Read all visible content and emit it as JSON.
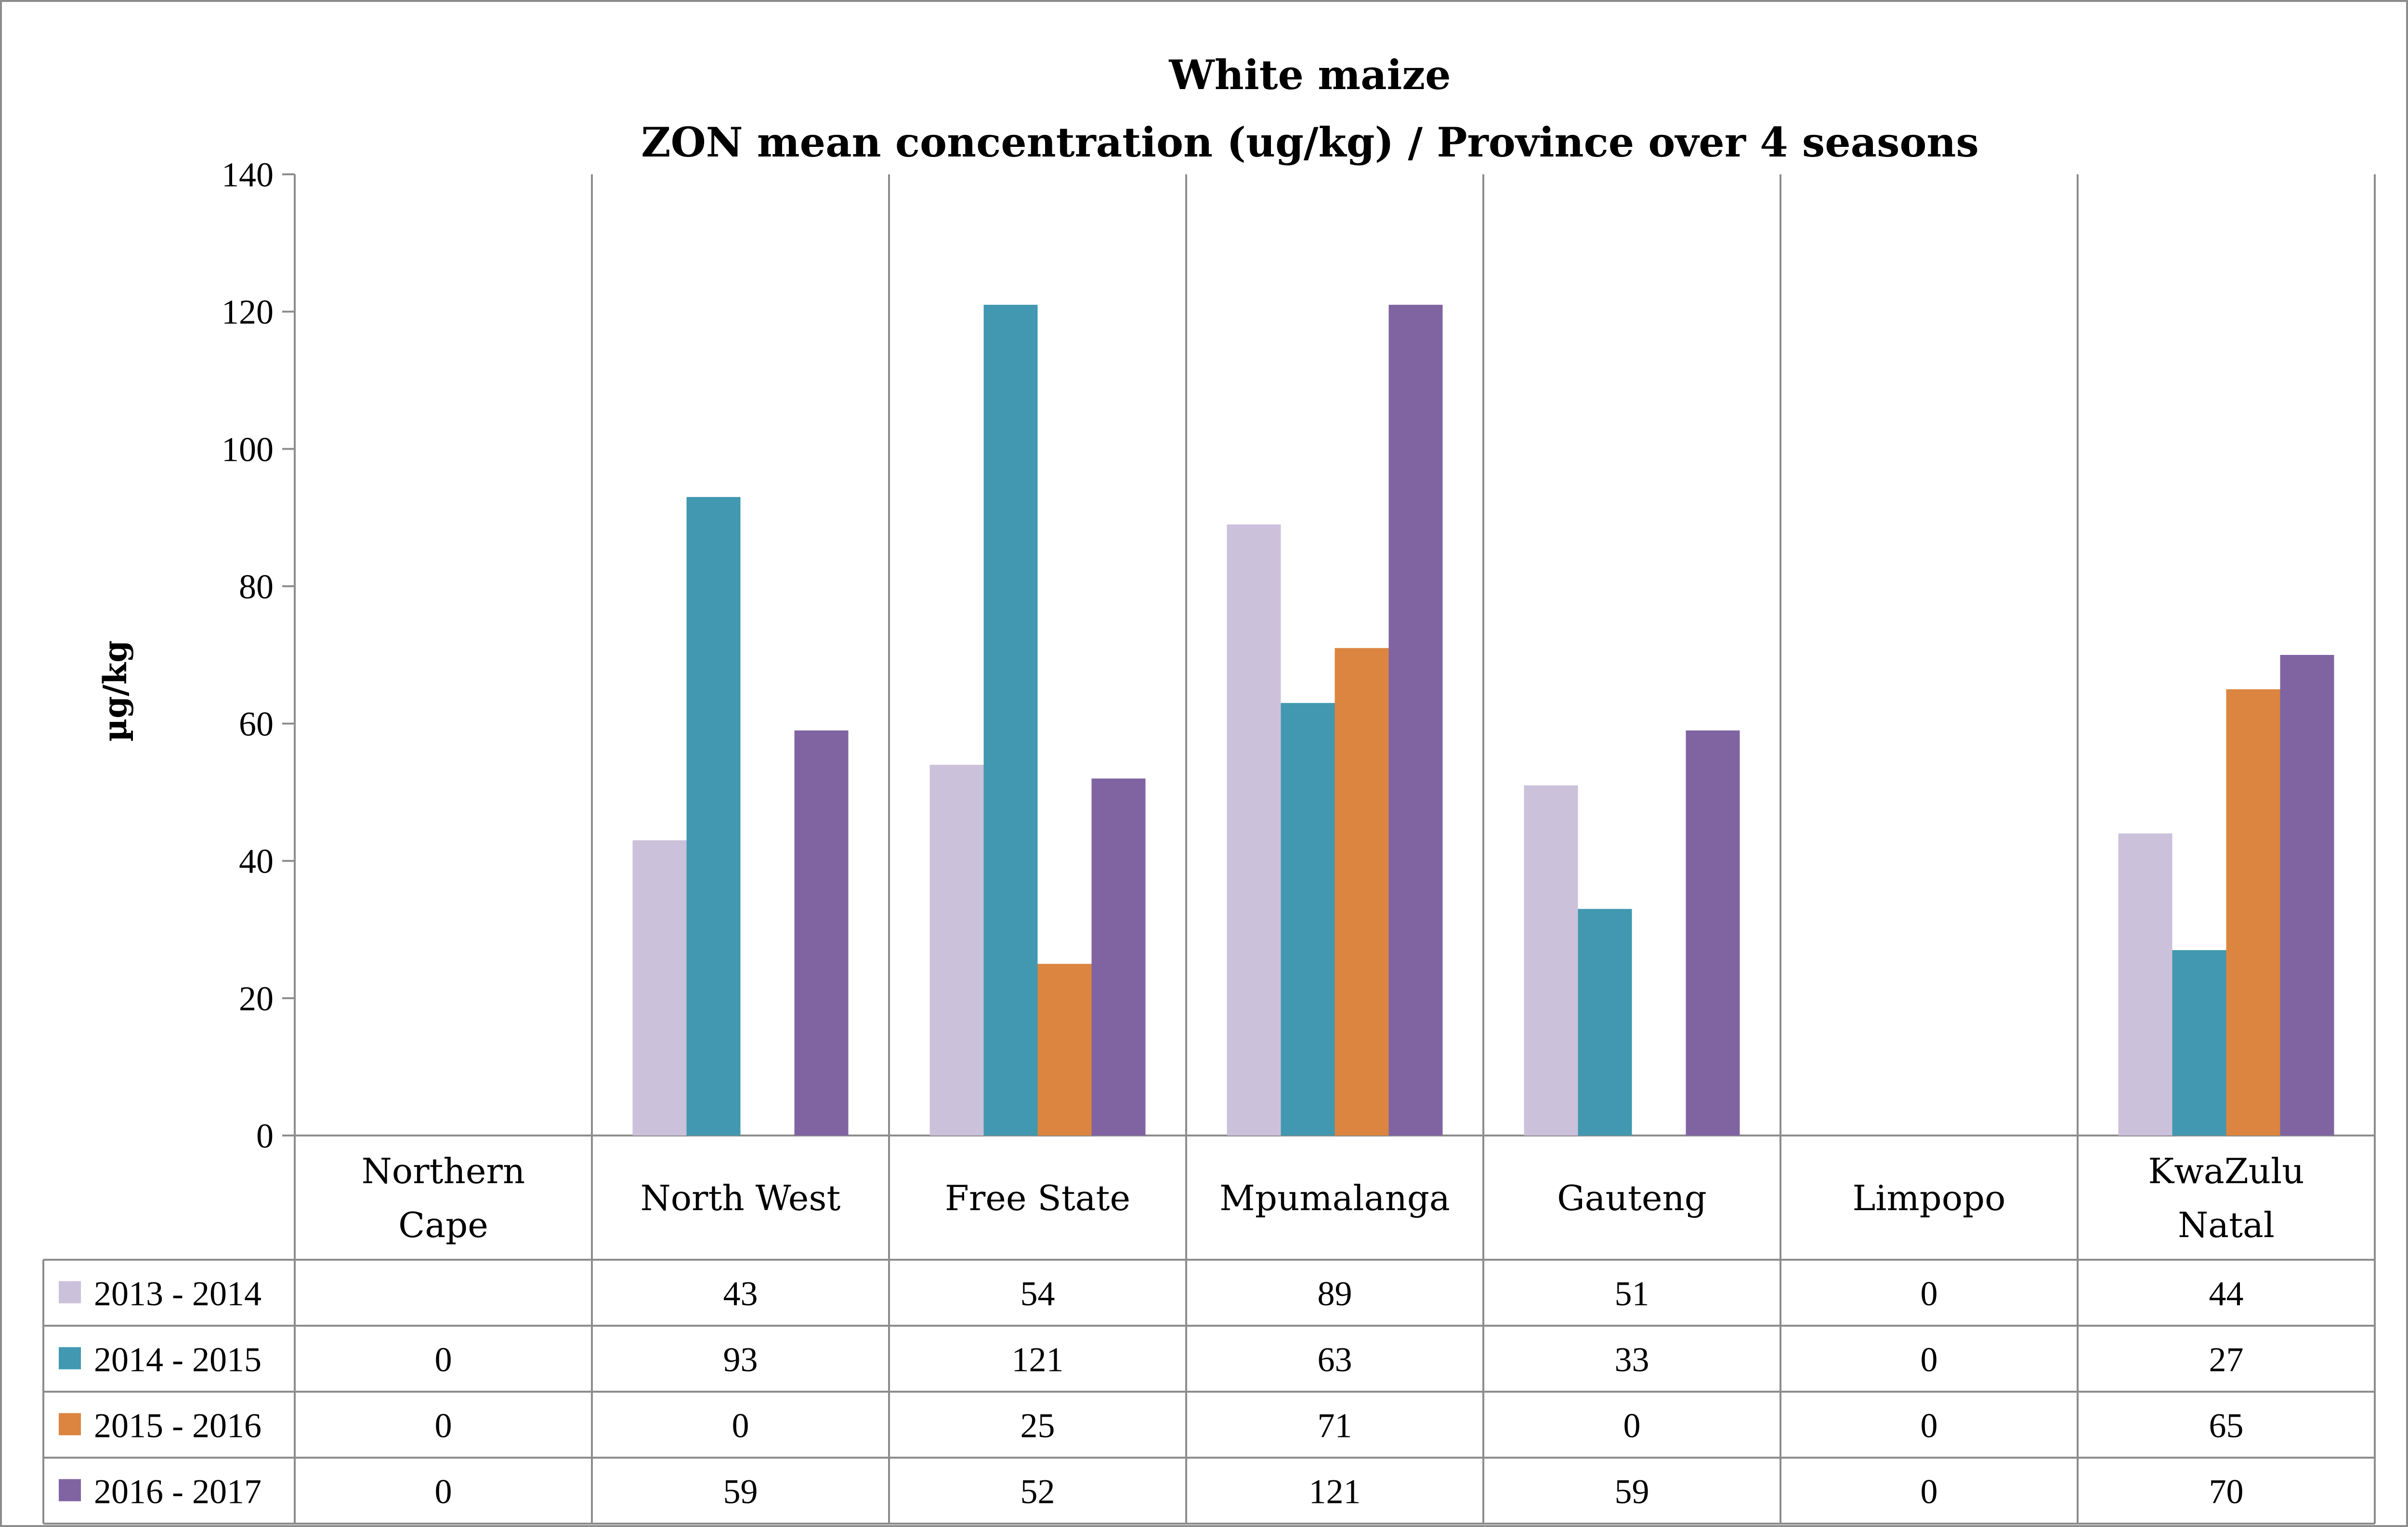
{
  "chart_data": {
    "type": "bar",
    "title": "White maize",
    "subtitle": "ZON mean concentration (ug/kg) / Province over 4 seasons",
    "ylabel": "µg/kg",
    "xlabel": "",
    "ylim": [
      0,
      140
    ],
    "yticks": [
      "0",
      "20",
      "40",
      "60",
      "80",
      "100",
      "120",
      "140"
    ],
    "grid": false,
    "legend_position": "data-table",
    "categories": [
      [
        "Northern",
        "Cape"
      ],
      [
        "North West"
      ],
      [
        "Free State"
      ],
      [
        "Mpumalanga"
      ],
      [
        "Gauteng"
      ],
      [
        "Limpopo"
      ],
      [
        "KwaZulu",
        "Natal"
      ]
    ],
    "series": [
      {
        "name": "2013 - 2014",
        "color": "#ccc1da",
        "values": [
          null,
          43,
          54,
          89,
          51,
          0,
          44
        ],
        "labels": [
          "",
          "43",
          "54",
          "89",
          "51",
          "0",
          "44"
        ]
      },
      {
        "name": "2014 - 2015",
        "color": "#4198b0",
        "values": [
          0,
          93,
          121,
          63,
          33,
          0,
          27
        ],
        "labels": [
          "0",
          "93",
          "121",
          "63",
          "33",
          "0",
          "27"
        ]
      },
      {
        "name": "2015 - 2016",
        "color": "#db8540",
        "values": [
          0,
          0,
          25,
          71,
          0,
          0,
          65
        ],
        "labels": [
          "0",
          "0",
          "25",
          "71",
          "0",
          "0",
          "65"
        ]
      },
      {
        "name": "2016 - 2017",
        "color": "#8064a2",
        "values": [
          0,
          59,
          52,
          121,
          59,
          0,
          70
        ],
        "labels": [
          "0",
          "59",
          "52",
          "121",
          "59",
          "0",
          "70"
        ]
      }
    ]
  }
}
